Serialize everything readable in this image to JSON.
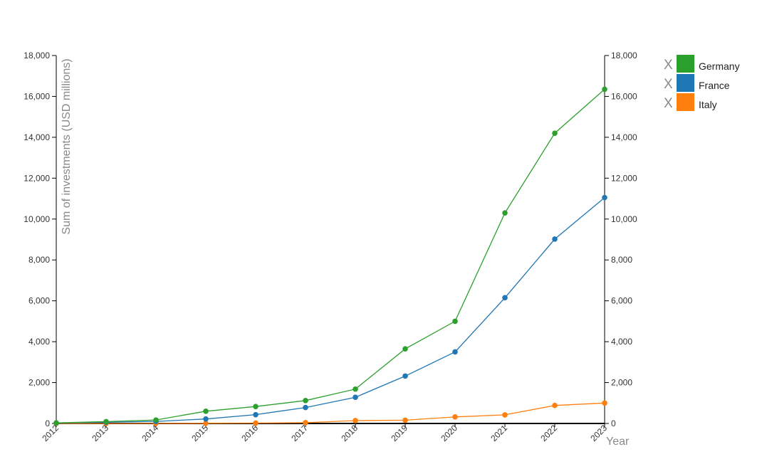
{
  "chart_data": {
    "type": "line",
    "ylabel": "Sum of investments (USD millions)",
    "xlabel": "Year",
    "x": [
      "2012",
      "2013",
      "2014",
      "2015",
      "2016",
      "2017",
      "2018",
      "2019",
      "2020",
      "2021",
      "2022",
      "2023"
    ],
    "ylim": [
      0,
      18000
    ],
    "yticks": [
      0,
      2000,
      4000,
      6000,
      8000,
      10000,
      12000,
      14000,
      16000,
      18000
    ],
    "ytick_labels": [
      "0",
      "2,000",
      "4,000",
      "6,000",
      "8,000",
      "10,000",
      "12,000",
      "14,000",
      "16,000",
      "18,000"
    ],
    "dual_y_axis": true,
    "grid": false,
    "legend_position": "top-right",
    "legend_remove_label": "X",
    "series": [
      {
        "name": "Germany",
        "color": "#2ca02c",
        "values": [
          30,
          90,
          170,
          600,
          830,
          1120,
          1680,
          3650,
          5000,
          10300,
          14200,
          16350
        ]
      },
      {
        "name": "France",
        "color": "#1f77b4",
        "values": [
          20,
          60,
          100,
          220,
          430,
          780,
          1280,
          2320,
          3500,
          6150,
          9020,
          11050
        ]
      },
      {
        "name": "Italy",
        "color": "#ff7f0e",
        "values": [
          0,
          0,
          5,
          10,
          20,
          40,
          140,
          160,
          320,
          420,
          880,
          1000
        ]
      }
    ]
  }
}
